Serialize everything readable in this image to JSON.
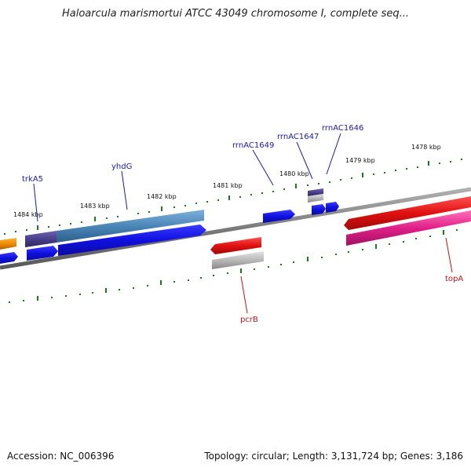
{
  "title": "Haloarcula marismortui ATCC 43049 chromosome I, complete seq...",
  "footer": {
    "accession": "Accession: NC_006396",
    "topology": "Topology: circular; Length: 3,131,724 bp; Genes: 3,186"
  },
  "scale_labels": [
    "1484 kbp",
    "1483 kbp",
    "1482 kbp",
    "1481 kbp",
    "1480 kbp",
    "1479 kbp",
    "1478 kbp"
  ],
  "gene_labels": {
    "trkA5": "trkA5",
    "yhdG": "yhdG",
    "rrnAC1649": "rrnAC1649",
    "rrnAC1647": "rrnAC1647",
    "rrnAC1646": "rrnAC1646",
    "pcrB": "pcrB",
    "topA": "topA"
  },
  "colors": {
    "blue_gene": "#1010e0",
    "steel_gene": "#4a86b8",
    "indigo_gene": "#4a3f8a",
    "red_gene": "#e01010",
    "magenta_gene": "#e0208a",
    "orange_gene": "#f08c00",
    "gray_gene": "#b8b8b8",
    "tick_green": "#1a7a1a",
    "backbone": "#888888",
    "label_blue": "#1a1aa6",
    "label_red": "#c0141a"
  }
}
